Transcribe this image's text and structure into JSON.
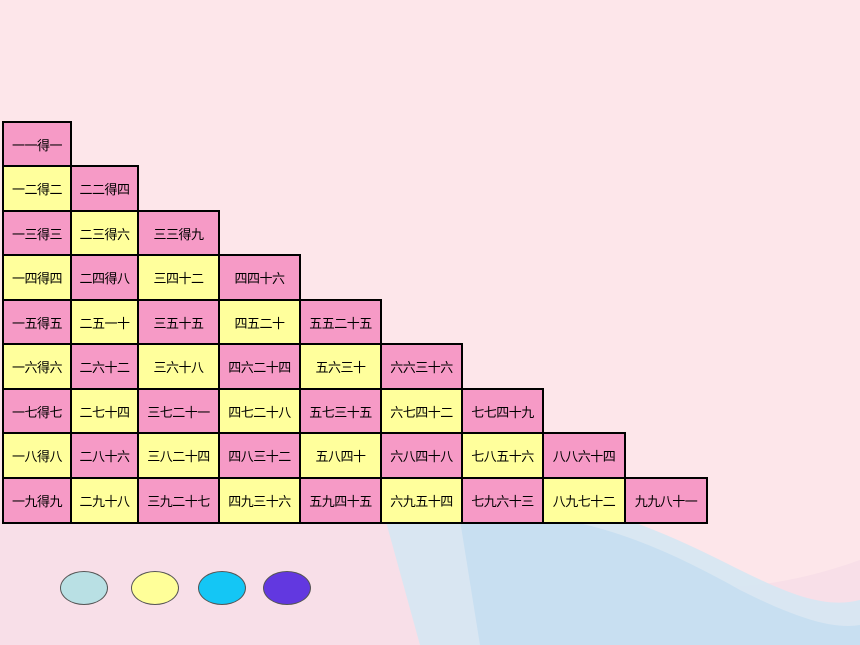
{
  "multiplication_table": {
    "rows": [
      [
        "一一得一"
      ],
      [
        "一二得二",
        "二二得四"
      ],
      [
        "一三得三",
        "二三得六",
        "三三得九"
      ],
      [
        "一四得四",
        "二四得八",
        "三四十二",
        "四四十六"
      ],
      [
        "一五得五",
        "二五一十",
        "三五十五",
        "四五二十",
        "五五二十五"
      ],
      [
        "一六得六",
        "二六十二",
        "三六十八",
        "四六二十四",
        "五六三十",
        "六六三十六"
      ],
      [
        "一七得七",
        "二七十四",
        "三七二十一",
        "四七二十八",
        "五七三十五",
        "六七四十二",
        "七七四十九"
      ],
      [
        "一八得八",
        "二八十六",
        "三八二十四",
        "四八三十二",
        "五八四十",
        "六八四十八",
        "七八五十六",
        "八八六十四"
      ],
      [
        "一九得九",
        "二九十八",
        "三九二十七",
        "四九三十六",
        "五九四十五",
        "六九五十四",
        "七九六十三",
        "八九七十二",
        "九九八十一"
      ]
    ]
  },
  "colors": {
    "background": "#fde6ea",
    "pink_cell": "#f69ac6",
    "yellow_cell": "#ffff9c",
    "wave": "#cfe6f2",
    "circles": [
      "#b9e0e4",
      "#ffff99",
      "#14c6f5",
      "#6238e0"
    ]
  }
}
